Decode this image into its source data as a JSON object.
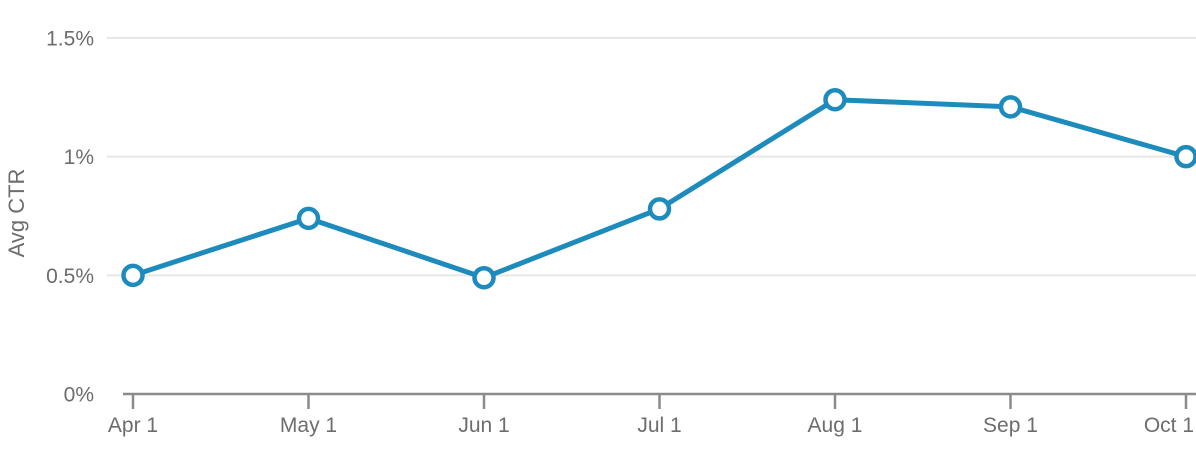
{
  "chart_data": {
    "type": "line",
    "title": "",
    "ylabel": "Avg CTR",
    "xlabel": "",
    "x_labels": [
      "Apr 1",
      "May 1",
      "Jun 1",
      "Jul 1",
      "Aug 1",
      "Sep 1",
      "Oct 1"
    ],
    "series": [
      {
        "name": "Avg CTR",
        "values": [
          0.5,
          0.74,
          0.49,
          0.78,
          1.24,
          1.21,
          1.0
        ]
      }
    ],
    "ylim": [
      0,
      1.5
    ],
    "yticks": [
      {
        "value": 0,
        "label": "0%"
      },
      {
        "value": 0.5,
        "label": "0.5%"
      },
      {
        "value": 1,
        "label": "1%"
      },
      {
        "value": 1.5,
        "label": "1.5%"
      }
    ],
    "grid": "horizontal",
    "legend": "none",
    "colors": {
      "line": "#1e8bbd",
      "marker_fill": "#ffffff",
      "gridline": "#e7e7e7",
      "axis": "#8b8b8b",
      "text": "#6d6d6d"
    }
  }
}
